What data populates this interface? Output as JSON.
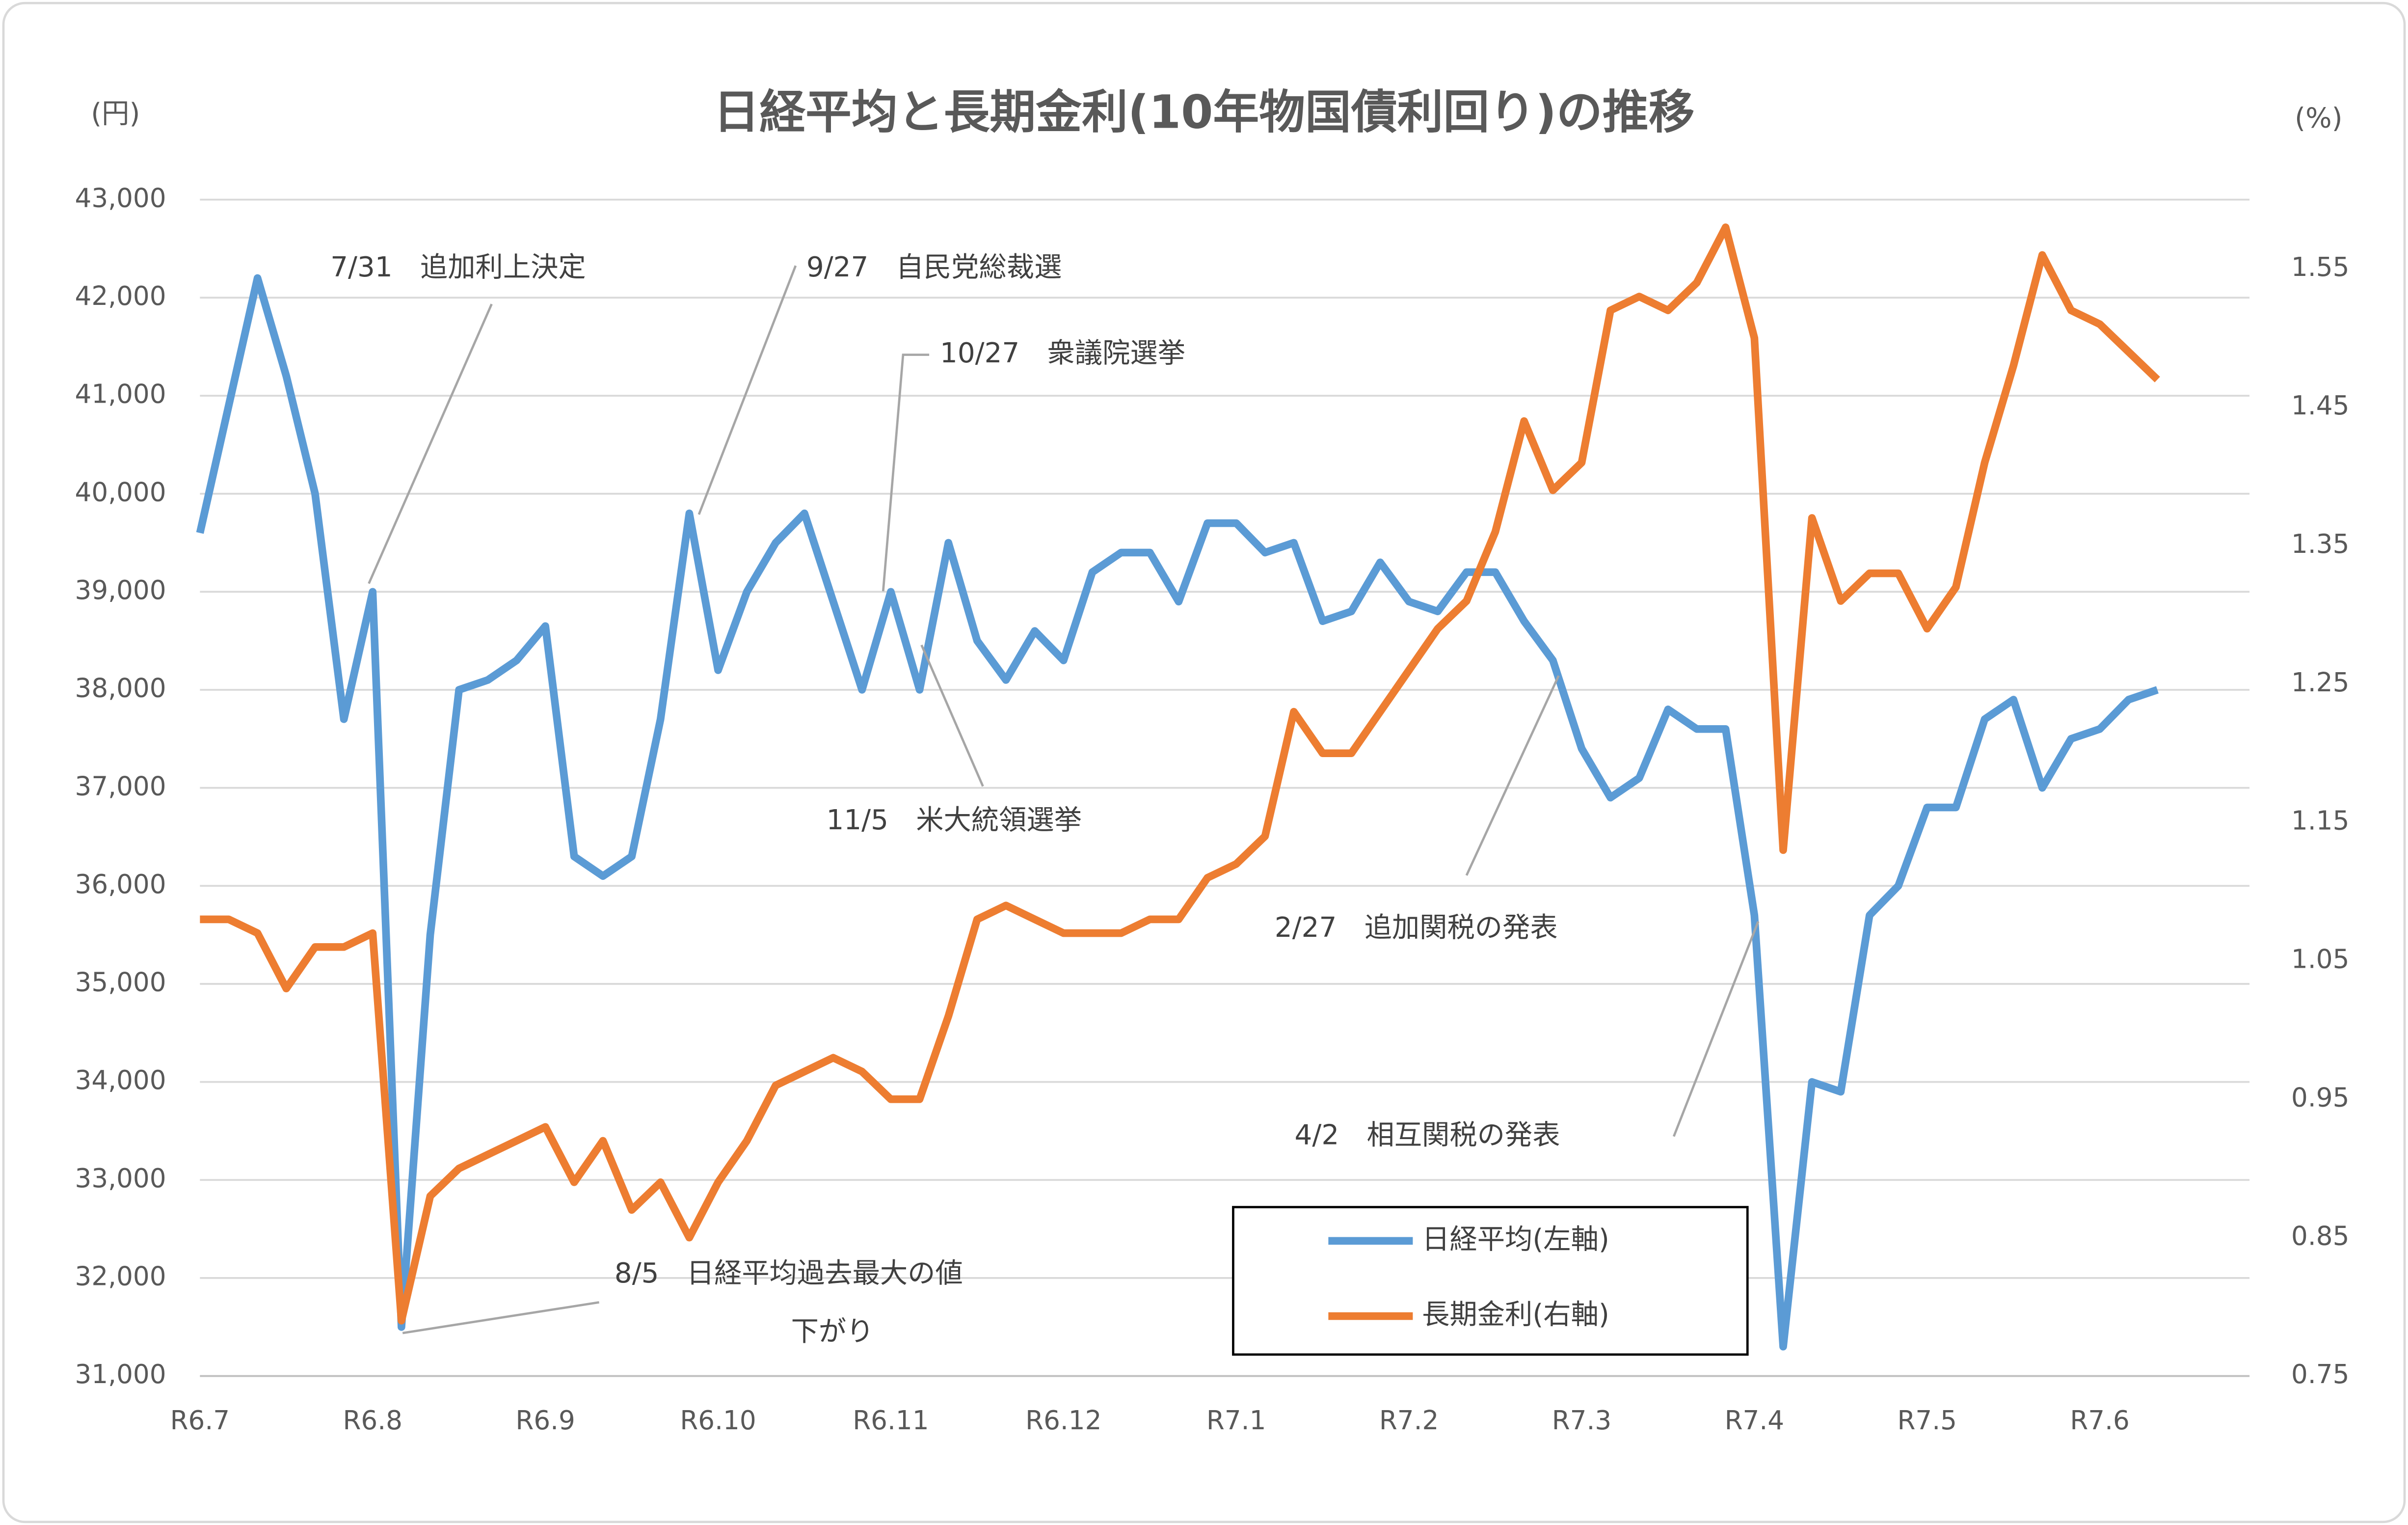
{
  "chart_data": {
    "type": "line",
    "title": "日経平均と長期金利(10年物国債利回り)の推移",
    "y_label": "(円)",
    "y2_label": "(%)",
    "categories": [
      "R6.7",
      null,
      null,
      null,
      null,
      null,
      "R6.8",
      null,
      null,
      null,
      null,
      null,
      "R6.9",
      null,
      null,
      null,
      null,
      null,
      "R6.10",
      null,
      null,
      null,
      null,
      null,
      "R6.11",
      null,
      null,
      null,
      null,
      null,
      "R6.12",
      null,
      null,
      null,
      null,
      null,
      "R7.1",
      null,
      null,
      null,
      null,
      null,
      "R7.2",
      null,
      null,
      null,
      null,
      null,
      "R7.3",
      null,
      null,
      null,
      null,
      null,
      "R7.4",
      null,
      null,
      null,
      null,
      null,
      "R7.5",
      null,
      null,
      null,
      null,
      null,
      "R7.6",
      null,
      null
    ],
    "series": [
      {
        "name": "日経平均(左軸)",
        "color": "#5b9bd5",
        "axis": "y",
        "values": [
          39600,
          40900,
          42200,
          41200,
          40000,
          37700,
          39000,
          31500,
          35500,
          38000,
          38100,
          38300,
          38650,
          36300,
          36100,
          36300,
          37700,
          39800,
          38200,
          39000,
          39500,
          39800,
          38900,
          38000,
          39000,
          38000,
          39500,
          38500,
          38100,
          38600,
          38300,
          39200,
          39400,
          39400,
          38900,
          39700,
          39700,
          39400,
          39500,
          38700,
          38800,
          39300,
          38900,
          38800,
          39200,
          39200,
          38700,
          38300,
          37400,
          36900,
          37100,
          37800,
          37600,
          37600,
          35700,
          31300,
          34000,
          33900,
          35700,
          36000,
          36800,
          36800,
          37700,
          37900,
          37000,
          37500,
          37600,
          37900,
          38000
        ]
      },
      {
        "name": "長期金利(右軸)",
        "color": "#ed7d31",
        "axis": "y2",
        "values": [
          1.08,
          1.08,
          1.07,
          1.03,
          1.06,
          1.06,
          1.07,
          0.79,
          0.88,
          0.9,
          0.91,
          0.92,
          0.93,
          0.89,
          0.92,
          0.87,
          0.89,
          0.85,
          0.89,
          0.92,
          0.96,
          0.97,
          0.98,
          0.97,
          0.95,
          0.95,
          1.01,
          1.08,
          1.09,
          1.08,
          1.07,
          1.07,
          1.07,
          1.08,
          1.08,
          1.11,
          1.12,
          1.14,
          1.23,
          1.2,
          1.2,
          1.23,
          1.26,
          1.29,
          1.31,
          1.36,
          1.44,
          1.39,
          1.41,
          1.52,
          1.53,
          1.52,
          1.54,
          1.58,
          1.5,
          1.13,
          1.37,
          1.31,
          1.33,
          1.33,
          1.29,
          1.32,
          1.41,
          1.48,
          1.56,
          1.52,
          1.51,
          1.49,
          1.47
        ]
      }
    ],
    "ylim": [
      31000,
      43000
    ],
    "yticks": [
      {
        "value": 31000,
        "label": "31,000"
      },
      {
        "value": 32000,
        "label": "32,000"
      },
      {
        "value": 33000,
        "label": "33,000"
      },
      {
        "value": 34000,
        "label": "34,000"
      },
      {
        "value": 35000,
        "label": "35,000"
      },
      {
        "value": 36000,
        "label": "36,000"
      },
      {
        "value": 37000,
        "label": "37,000"
      },
      {
        "value": 38000,
        "label": "38,000"
      },
      {
        "value": 39000,
        "label": "39,000"
      },
      {
        "value": 40000,
        "label": "40,000"
      },
      {
        "value": 41000,
        "label": "41,000"
      },
      {
        "value": 42000,
        "label": "42,000"
      },
      {
        "value": 43000,
        "label": "43,000"
      }
    ],
    "y2lim": [
      0.75,
      1.6
    ],
    "y2ticks": [
      0.75,
      0.85,
      0.95,
      1.05,
      1.15,
      1.25,
      1.35,
      1.45,
      1.55
    ],
    "grid": true,
    "annotations": [
      "7/31　追加利上決定",
      "9/27　自民党総裁選",
      "10/27　衆議院選挙",
      "11/5　米大統領選挙",
      "2/27　追加関税の発表",
      "4/2　相互関税の発表",
      "8/5　日経平均過去最大の値",
      "下がり"
    ]
  }
}
